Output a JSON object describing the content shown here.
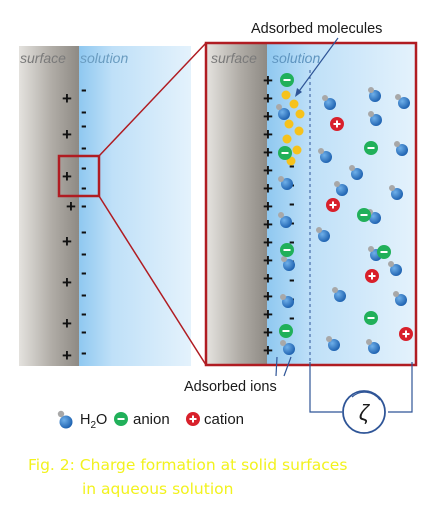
{
  "figure": {
    "left_panel": {
      "surface_label": "surface",
      "solution_label": "solution"
    },
    "right_panel": {
      "surface_label": "surface",
      "solution_label": "solution"
    },
    "callouts": {
      "adsorbed_molecules": "Adsorbed molecules",
      "adsorbed_ions": "Adsorbed ions"
    },
    "legend": {
      "h2o": "H",
      "h2o_sub": "2",
      "h2o_tail": "O",
      "anion": "anion",
      "cation": "cation"
    },
    "zeta_symbol": "ζ",
    "caption": {
      "line1": "Fig. 2: Charge formation at solid surfaces",
      "line2": "in aqueous solution"
    }
  },
  "colors": {
    "surface_gray": "#9a9690",
    "solution_blue": "#cfe8fa",
    "frame_red": "#b01c22",
    "connector_blue": "#2f5597",
    "anion_green": "#21b05a",
    "cation_red": "#d8202b",
    "water_blue": "#2473c7",
    "adsorbed_yellow": "#f6c21c",
    "caption_yellow": "#f2f21e"
  }
}
